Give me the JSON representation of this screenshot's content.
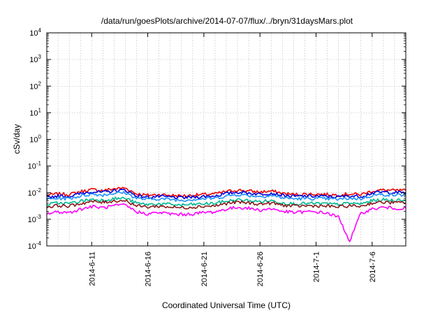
{
  "chart_data": {
    "type": "line",
    "title": "/data/run/goesPlots/archive/2014-07-07/flux/../bryn/31daysMars.plot",
    "xlabel": "Coordinated Universal Time (UTC)",
    "ylabel": "cSv/day",
    "yscale": "log",
    "ylim": [
      0.0001,
      10000
    ],
    "y_ticks": [
      {
        "value": 0.0001,
        "base": "10",
        "exp": "-4"
      },
      {
        "value": 0.001,
        "base": "10",
        "exp": "-3"
      },
      {
        "value": 0.01,
        "base": "10",
        "exp": "-2"
      },
      {
        "value": 0.1,
        "base": "10",
        "exp": "-1"
      },
      {
        "value": 1,
        "base": "10",
        "exp": "0"
      },
      {
        "value": 10,
        "base": "10",
        "exp": "1"
      },
      {
        "value": 100,
        "base": "10",
        "exp": "2"
      },
      {
        "value": 1000,
        "base": "10",
        "exp": "3"
      },
      {
        "value": 10000,
        "base": "10",
        "exp": "4"
      }
    ],
    "xlim": [
      "2014-06-07",
      "2014-07-09"
    ],
    "x_ticks": [
      {
        "date": "2014-06-11",
        "label": "2014-6-11"
      },
      {
        "date": "2014-06-16",
        "label": "2014-6-16"
      },
      {
        "date": "2014-06-21",
        "label": "2014-6-21"
      },
      {
        "date": "2014-06-26",
        "label": "2014-6-26"
      },
      {
        "date": "2014-07-01",
        "label": "2014-7-1"
      },
      {
        "date": "2014-07-06",
        "label": "2014-7-6"
      }
    ],
    "grid": true,
    "legend": "none",
    "x": [
      "2014-06-07",
      "2014-06-08",
      "2014-06-09",
      "2014-06-10",
      "2014-06-11",
      "2014-06-12",
      "2014-06-13",
      "2014-06-14",
      "2014-06-15",
      "2014-06-16",
      "2014-06-17",
      "2014-06-18",
      "2014-06-19",
      "2014-06-20",
      "2014-06-21",
      "2014-06-22",
      "2014-06-23",
      "2014-06-24",
      "2014-06-25",
      "2014-06-26",
      "2014-06-27",
      "2014-06-28",
      "2014-06-29",
      "2014-06-30",
      "2014-07-01",
      "2014-07-02",
      "2014-07-03",
      "2014-07-04",
      "2014-07-05",
      "2014-07-06",
      "2014-07-07",
      "2014-07-08",
      "2014-07-09"
    ],
    "series": [
      {
        "color": "#ee0000",
        "values": [
          0.008,
          0.009,
          0.0085,
          0.011,
          0.013,
          0.012,
          0.014,
          0.015,
          0.009,
          0.008,
          0.0085,
          0.008,
          0.0075,
          0.008,
          0.0085,
          0.009,
          0.011,
          0.0125,
          0.0115,
          0.0105,
          0.0115,
          0.0095,
          0.0085,
          0.0088,
          0.0088,
          0.0085,
          0.0082,
          0.009,
          0.0085,
          0.0115,
          0.0125,
          0.012,
          0.012
        ]
      },
      {
        "color": "#0000dd",
        "values": [
          0.0068,
          0.0075,
          0.0072,
          0.0092,
          0.011,
          0.0102,
          0.0118,
          0.0125,
          0.0076,
          0.0068,
          0.0072,
          0.0068,
          0.0064,
          0.0068,
          0.0072,
          0.0076,
          0.0092,
          0.0105,
          0.0097,
          0.0088,
          0.0097,
          0.008,
          0.0072,
          0.0074,
          0.0074,
          0.0072,
          0.0069,
          0.0076,
          0.0072,
          0.0097,
          0.0105,
          0.0101,
          0.0101
        ]
      },
      {
        "color": "#1e90ff",
        "values": [
          0.0055,
          0.0062,
          0.006,
          0.0075,
          0.0088,
          0.0082,
          0.0095,
          0.01,
          0.0062,
          0.0056,
          0.0059,
          0.0056,
          0.0052,
          0.0056,
          0.0059,
          0.0062,
          0.0075,
          0.0085,
          0.0079,
          0.0072,
          0.0079,
          0.0065,
          0.0059,
          0.006,
          0.006,
          0.0059,
          0.0056,
          0.0062,
          0.0059,
          0.0079,
          0.0085,
          0.0082,
          0.0082
        ]
      },
      {
        "color": "#00b894",
        "values": [
          0.0036,
          0.0041,
          0.0039,
          0.0048,
          0.0056,
          0.0052,
          0.006,
          0.0062,
          0.004,
          0.0036,
          0.0038,
          0.0036,
          0.0034,
          0.0036,
          0.0038,
          0.004,
          0.0048,
          0.0054,
          0.005,
          0.0046,
          0.005,
          0.0042,
          0.0038,
          0.0039,
          0.0039,
          0.0038,
          0.0036,
          0.004,
          0.0038,
          0.005,
          0.0054,
          0.0052,
          0.0052
        ]
      },
      {
        "color": "#8b1a1a",
        "values": [
          0.0029,
          0.0033,
          0.0031,
          0.0039,
          0.0046,
          0.0043,
          0.0049,
          0.0051,
          0.0032,
          0.0029,
          0.0031,
          0.0029,
          0.0027,
          0.0029,
          0.0031,
          0.0032,
          0.0039,
          0.0044,
          0.0041,
          0.0037,
          0.0041,
          0.0034,
          0.0031,
          0.0032,
          0.0032,
          0.0031,
          0.0029,
          0.0032,
          0.0031,
          0.0041,
          0.0044,
          0.0042,
          0.0042
        ]
      },
      {
        "color": "#ff00ff",
        "values": [
          0.0016,
          0.0019,
          0.0018,
          0.0024,
          0.003,
          0.0027,
          0.0032,
          0.0034,
          0.0019,
          0.0016,
          0.0018,
          0.0016,
          0.0015,
          0.0016,
          0.0018,
          0.0019,
          0.0024,
          0.0028,
          0.0026,
          0.0022,
          0.0025,
          0.002,
          0.0018,
          0.0019,
          0.0019,
          0.0017,
          0.0012,
          0.00015,
          0.0017,
          0.0024,
          0.0028,
          0.0026,
          0.0026
        ]
      }
    ]
  }
}
